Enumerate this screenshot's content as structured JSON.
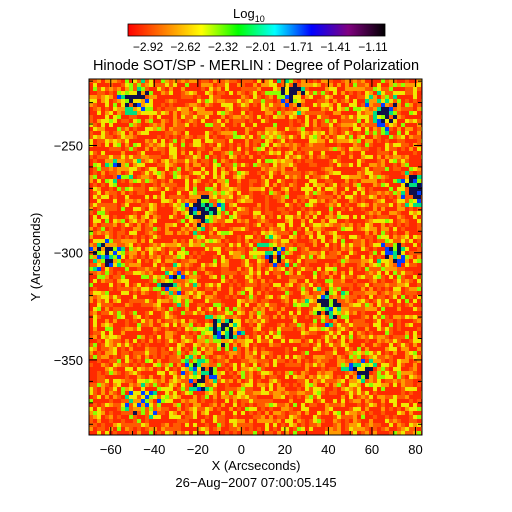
{
  "chart_data": {
    "type": "heatmap",
    "title": "Hinode SOT/SP - MERLIN : Degree of Polarization",
    "colorbar": {
      "label_prefix": "Log",
      "label_subscript": "10",
      "ticks": [
        "−2.92",
        "−2.62",
        "−2.32",
        "−2.01",
        "−1.71",
        "−1.41",
        "−1.11"
      ],
      "range": [
        -2.92,
        -1.11
      ],
      "colormap": [
        "#ff0000",
        "#ff8000",
        "#ffff00",
        "#00ff00",
        "#00ffff",
        "#0000ff",
        "#800080",
        "#000000"
      ]
    },
    "xlabel": "X (Arcseconds)",
    "ylabel": "Y (Arcseconds)",
    "xlim": [
      -70,
      83
    ],
    "ylim": [
      -385,
      -219
    ],
    "xticks": [
      {
        "value": -60,
        "label": "−60"
      },
      {
        "value": -40,
        "label": "−40"
      },
      {
        "value": -20,
        "label": "−20"
      },
      {
        "value": 0,
        "label": "0"
      },
      {
        "value": 20,
        "label": "20"
      },
      {
        "value": 40,
        "label": "40"
      },
      {
        "value": 60,
        "label": "60"
      },
      {
        "value": 80,
        "label": "80"
      }
    ],
    "yticks": [
      {
        "value": -250,
        "label": "−250"
      },
      {
        "value": -300,
        "label": "−300"
      },
      {
        "value": -350,
        "label": "−350"
      }
    ],
    "footer": "26−Aug−2007 07:00:05.145",
    "dominant_color": "#ff2a00",
    "high_polarization_patches": [
      {
        "x": -18,
        "y": -280,
        "level": 0.9
      },
      {
        "x": -62,
        "y": -300,
        "level": 0.75
      },
      {
        "x": -8,
        "y": -337,
        "level": 0.85
      },
      {
        "x": 40,
        "y": -325,
        "level": 0.8
      },
      {
        "x": 65,
        "y": -235,
        "level": 0.8
      },
      {
        "x": 80,
        "y": -270,
        "level": 0.7
      },
      {
        "x": -48,
        "y": -228,
        "level": 0.65
      },
      {
        "x": 24,
        "y": -225,
        "level": 0.6
      },
      {
        "x": -20,
        "y": -357,
        "level": 0.7
      },
      {
        "x": -45,
        "y": -370,
        "level": 0.6
      },
      {
        "x": 55,
        "y": -355,
        "level": 0.55
      },
      {
        "x": 15,
        "y": -300,
        "level": 0.5
      },
      {
        "x": -30,
        "y": -315,
        "level": 0.5
      },
      {
        "x": -55,
        "y": -260,
        "level": 0.45
      },
      {
        "x": 70,
        "y": -300,
        "level": 0.5
      }
    ]
  }
}
